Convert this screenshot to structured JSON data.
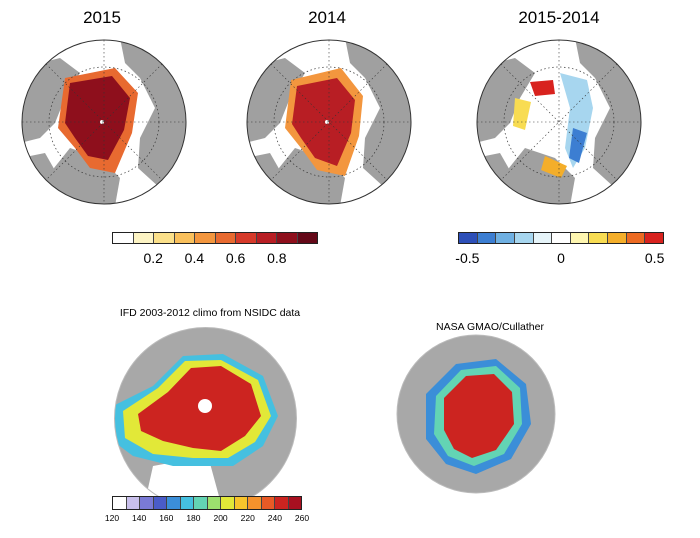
{
  "panels": {
    "p2015": {
      "title": "2015"
    },
    "p2014": {
      "title": "2014"
    },
    "pdiff": {
      "title": "2015-2014"
    },
    "pifd": {
      "title": "IFD 2003-2012 climo from NSIDC data"
    },
    "pnasa": {
      "title": "NASA GMAO/Cullather"
    }
  },
  "colorbars": {
    "fraction": {
      "colors": [
        "#ffffff",
        "#fdf4c4",
        "#fbe08a",
        "#f9c05c",
        "#f3963e",
        "#e86a30",
        "#d63a2a",
        "#b81e24",
        "#8e0f1c",
        "#640818"
      ],
      "ticks": [
        "0.2",
        "0.4",
        "0.6",
        "0.8"
      ],
      "tick_values": [
        0.2,
        0.4,
        0.6,
        0.8
      ],
      "range": [
        0,
        1
      ]
    },
    "difference": {
      "colors": [
        "#2d4fb8",
        "#3c7ed2",
        "#6fb0e2",
        "#a7d6ef",
        "#e6f4f9",
        "#ffffff",
        "#fef6b0",
        "#f8dc52",
        "#f4ae2a",
        "#ec6a22",
        "#d8221e"
      ],
      "ticks": [
        "-0.5",
        "0",
        "0.5"
      ],
      "tick_values": [
        -0.5,
        0,
        0.5
      ],
      "range": [
        -0.55,
        0.55
      ]
    },
    "days": {
      "colors": [
        "#ffffff",
        "#c9c0ec",
        "#7a7ad6",
        "#4a5cc8",
        "#3b8ed8",
        "#45c0e0",
        "#63d4b4",
        "#9ce06e",
        "#e2e838",
        "#f8c42c",
        "#f5922c",
        "#e85a26",
        "#cc2420",
        "#a81020"
      ],
      "ticks": [
        "120",
        "140",
        "160",
        "180",
        "200",
        "220",
        "240",
        "260"
      ],
      "tick_values": [
        120,
        140,
        160,
        180,
        200,
        220,
        240,
        260
      ],
      "range": [
        120,
        260
      ]
    }
  }
}
